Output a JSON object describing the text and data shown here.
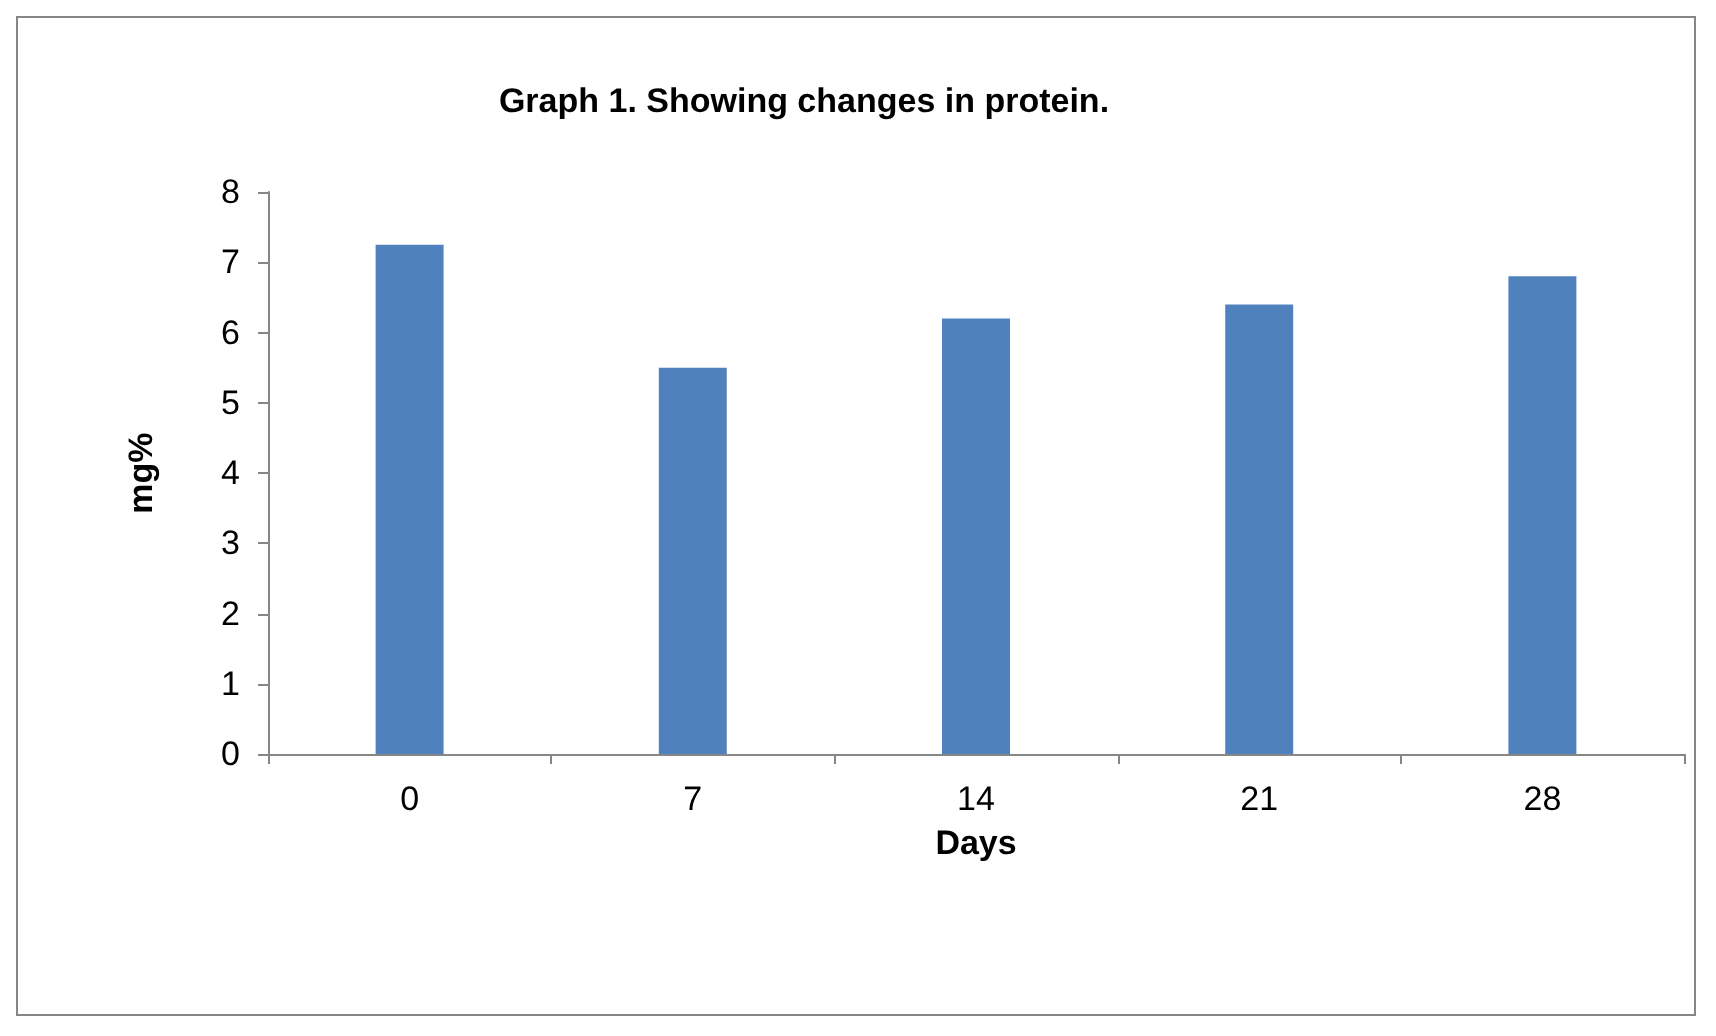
{
  "chart_data": {
    "type": "bar",
    "title": "Graph 1. Showing changes in protein.",
    "xlabel": "Days",
    "ylabel": "mg%",
    "categories": [
      "0",
      "7",
      "14",
      "21",
      "28"
    ],
    "values": [
      7.25,
      5.5,
      6.2,
      6.4,
      6.8
    ],
    "color": "#4f81bd",
    "ylim": [
      0,
      8
    ],
    "yticks": [
      0,
      1,
      2,
      3,
      4,
      5,
      6,
      7,
      8
    ],
    "grid": false
  }
}
